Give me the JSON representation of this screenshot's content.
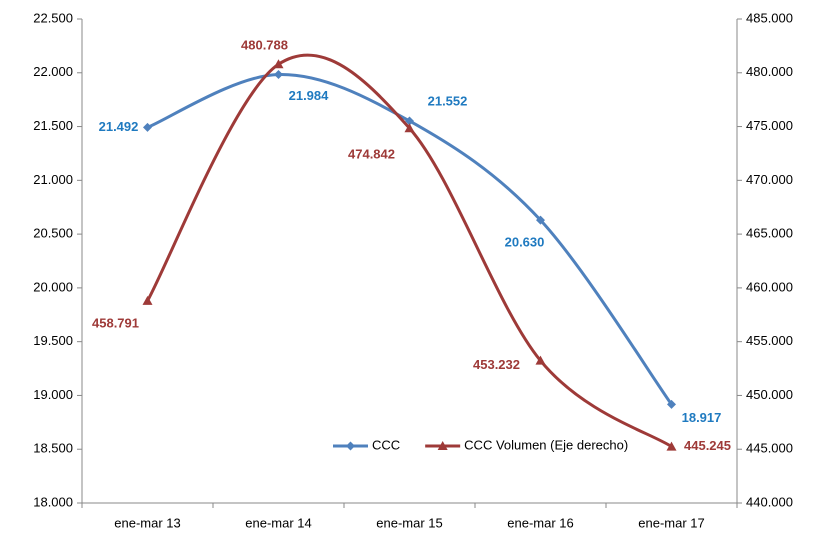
{
  "chart_data": {
    "type": "line",
    "categories": [
      "ene-mar 13",
      "ene-mar 14",
      "ene-mar 15",
      "ene-mar 16",
      "ene-mar 17"
    ],
    "series": [
      {
        "name": "CCC",
        "color": "#4f81bd",
        "label_color": "#1f7ac0",
        "marker": "diamond",
        "values": [
          21492,
          21984,
          21552,
          20630,
          18917
        ],
        "value_labels": [
          "21.492",
          "21.984",
          "21.552",
          "20.630",
          "18.917"
        ]
      },
      {
        "name": "CCC Volumen (Eje derecho)",
        "color": "#9e3a38",
        "label_color": "#9e3a38",
        "marker": "triangle",
        "axis": "y2",
        "values": [
          458791,
          480788,
          474842,
          453232,
          445245
        ],
        "value_labels": [
          "458.791",
          "480.788",
          "474.842",
          "453.232",
          "445.245"
        ]
      }
    ],
    "ylim": [
      18000,
      22500
    ],
    "yticks": [
      {
        "value": 18000,
        "label": "18.000"
      },
      {
        "value": 18500,
        "label": "18.500"
      },
      {
        "value": 19000,
        "label": "19.000"
      },
      {
        "value": 19500,
        "label": "19.500"
      },
      {
        "value": 20000,
        "label": "20.000"
      },
      {
        "value": 20500,
        "label": "20.500"
      },
      {
        "value": 21000,
        "label": "21.000"
      },
      {
        "value": 21500,
        "label": "21.500"
      },
      {
        "value": 22000,
        "label": "22.000"
      },
      {
        "value": 22500,
        "label": "22.500"
      }
    ],
    "y2lim": [
      440000,
      485000
    ],
    "y2ticks": [
      {
        "value": 440000,
        "label": "440.000"
      },
      {
        "value": 445000,
        "label": "445.000"
      },
      {
        "value": 450000,
        "label": "450.000"
      },
      {
        "value": 455000,
        "label": "455.000"
      },
      {
        "value": 460000,
        "label": "460.000"
      },
      {
        "value": 465000,
        "label": "465.000"
      },
      {
        "value": 470000,
        "label": "470.000"
      },
      {
        "value": 475000,
        "label": "475.000"
      },
      {
        "value": 480000,
        "label": "480.000"
      },
      {
        "value": 485000,
        "label": "485.000"
      }
    ],
    "smooth": true,
    "grid": false,
    "legend": "lower center"
  }
}
